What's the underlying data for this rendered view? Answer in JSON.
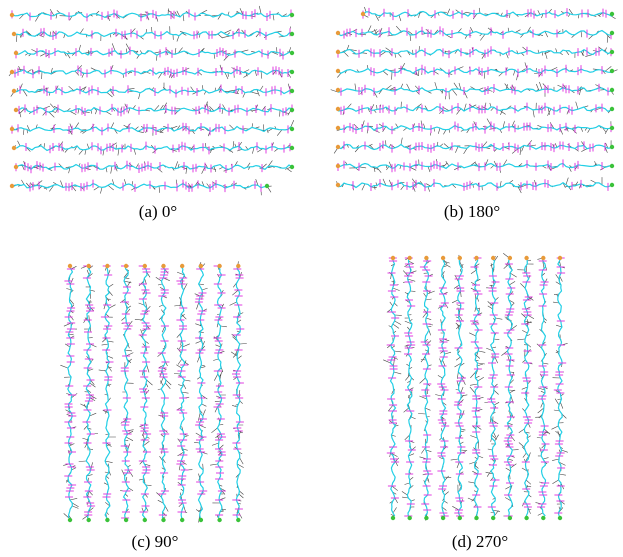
{
  "panels": [
    {
      "caption": "(a) 0°"
    },
    {
      "caption": "(b) 180°"
    },
    {
      "caption": "(c) 90°"
    },
    {
      "caption": "(d) 270°"
    }
  ]
}
